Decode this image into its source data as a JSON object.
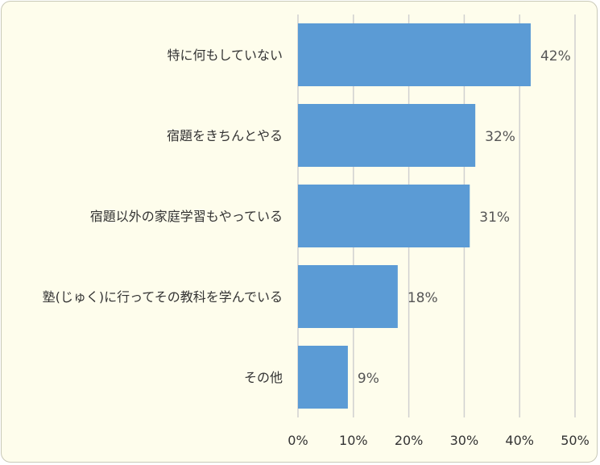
{
  "chart_data": {
    "type": "bar",
    "orientation": "horizontal",
    "categories": [
      "特に何もしていない",
      "宿題をきちんとやる",
      "宿題以外の家庭学習もやっている",
      "塾(じゅく)に行ってその教科を学んでいる",
      "その他"
    ],
    "values": [
      42,
      32,
      31,
      18,
      9
    ],
    "value_labels": [
      "42%",
      "32%",
      "31%",
      "18%",
      "9%"
    ],
    "xlim": [
      0,
      50
    ],
    "x_ticks": [
      0,
      10,
      20,
      30,
      40,
      50
    ],
    "x_tick_labels": [
      "0%",
      "10%",
      "20%",
      "30%",
      "40%",
      "50%"
    ],
    "grid": "vertical",
    "legend": "none"
  },
  "colors": {
    "bar": "#5B9BD5",
    "grid": "#d0d0d0",
    "background": "#FEFDEC"
  }
}
